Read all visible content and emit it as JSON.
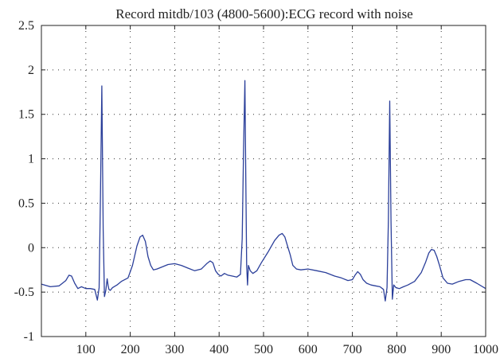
{
  "chart_data": {
    "type": "line",
    "title": "Record mitdb/103 (4800-5600):ECG record with noise",
    "xlabel": "",
    "ylabel": "",
    "xlim": [
      0,
      1000
    ],
    "ylim": [
      -1,
      2.5
    ],
    "grid": true,
    "x_ticks": [
      100,
      200,
      300,
      400,
      500,
      600,
      700,
      800,
      900,
      1000
    ],
    "x_tick_labels": [
      "100",
      "200",
      "300",
      "400",
      "500",
      "600",
      "700",
      "800",
      "900",
      "1000"
    ],
    "y_ticks": [
      2.5,
      2,
      1.5,
      1,
      0.5,
      0,
      -0.5,
      -1
    ],
    "y_tick_labels": [
      "2.5",
      "2",
      "1.5",
      "1",
      "0.5",
      "0",
      "-0.5",
      "-1"
    ],
    "line_color": "#2b3f9a",
    "series": [
      {
        "x": [
          0,
          20,
          40,
          55,
          62,
          68,
          75,
          82,
          90,
          100,
          110,
          120,
          126,
          130,
          133,
          136,
          139,
          142,
          145,
          148,
          150,
          152,
          155,
          160,
          170,
          180,
          195,
          205,
          215,
          222,
          228,
          234,
          240,
          246,
          252,
          260,
          270,
          285,
          300,
          315,
          330,
          345,
          360,
          372,
          380,
          386,
          392,
          398,
          404,
          412,
          420,
          430,
          440,
          448,
          452,
          455,
          458,
          460,
          462,
          464,
          466,
          470,
          476,
          485,
          495,
          510,
          525,
          535,
          542,
          548,
          554,
          560,
          566,
          574,
          584,
          600,
          620,
          640,
          660,
          675,
          690,
          700,
          706,
          712,
          718,
          724,
          732,
          742,
          752,
          762,
          770,
          774,
          778,
          781,
          784,
          787,
          790,
          793,
          798,
          806,
          815,
          825,
          840,
          855,
          865,
          872,
          878,
          884,
          890,
          896,
          904,
          914,
          925,
          940,
          955,
          965,
          980,
          1000
        ],
        "y": [
          -0.41,
          -0.44,
          -0.43,
          -0.37,
          -0.31,
          -0.32,
          -0.4,
          -0.46,
          -0.44,
          -0.46,
          -0.46,
          -0.47,
          -0.59,
          -0.45,
          0.6,
          1.82,
          0.2,
          -0.55,
          -0.48,
          -0.35,
          -0.42,
          -0.47,
          -0.48,
          -0.45,
          -0.42,
          -0.38,
          -0.34,
          -0.2,
          0.02,
          0.12,
          0.14,
          0.07,
          -0.1,
          -0.2,
          -0.25,
          -0.24,
          -0.22,
          -0.19,
          -0.18,
          -0.2,
          -0.23,
          -0.26,
          -0.24,
          -0.18,
          -0.15,
          -0.17,
          -0.26,
          -0.3,
          -0.32,
          -0.29,
          -0.31,
          -0.32,
          -0.33,
          -0.3,
          0.1,
          1.1,
          1.88,
          0.8,
          -0.2,
          -0.42,
          -0.2,
          -0.26,
          -0.29,
          -0.26,
          -0.17,
          -0.05,
          0.08,
          0.14,
          0.16,
          0.12,
          0.02,
          -0.08,
          -0.2,
          -0.24,
          -0.25,
          -0.24,
          -0.26,
          -0.28,
          -0.32,
          -0.34,
          -0.37,
          -0.36,
          -0.31,
          -0.27,
          -0.3,
          -0.36,
          -0.4,
          -0.42,
          -0.43,
          -0.44,
          -0.47,
          -0.6,
          -0.45,
          0.3,
          1.65,
          0.3,
          -0.58,
          -0.42,
          -0.45,
          -0.46,
          -0.44,
          -0.42,
          -0.38,
          -0.28,
          -0.16,
          -0.06,
          -0.02,
          -0.03,
          -0.1,
          -0.2,
          -0.34,
          -0.4,
          -0.41,
          -0.38,
          -0.36,
          -0.36,
          -0.4,
          -0.46
        ]
      }
    ]
  }
}
